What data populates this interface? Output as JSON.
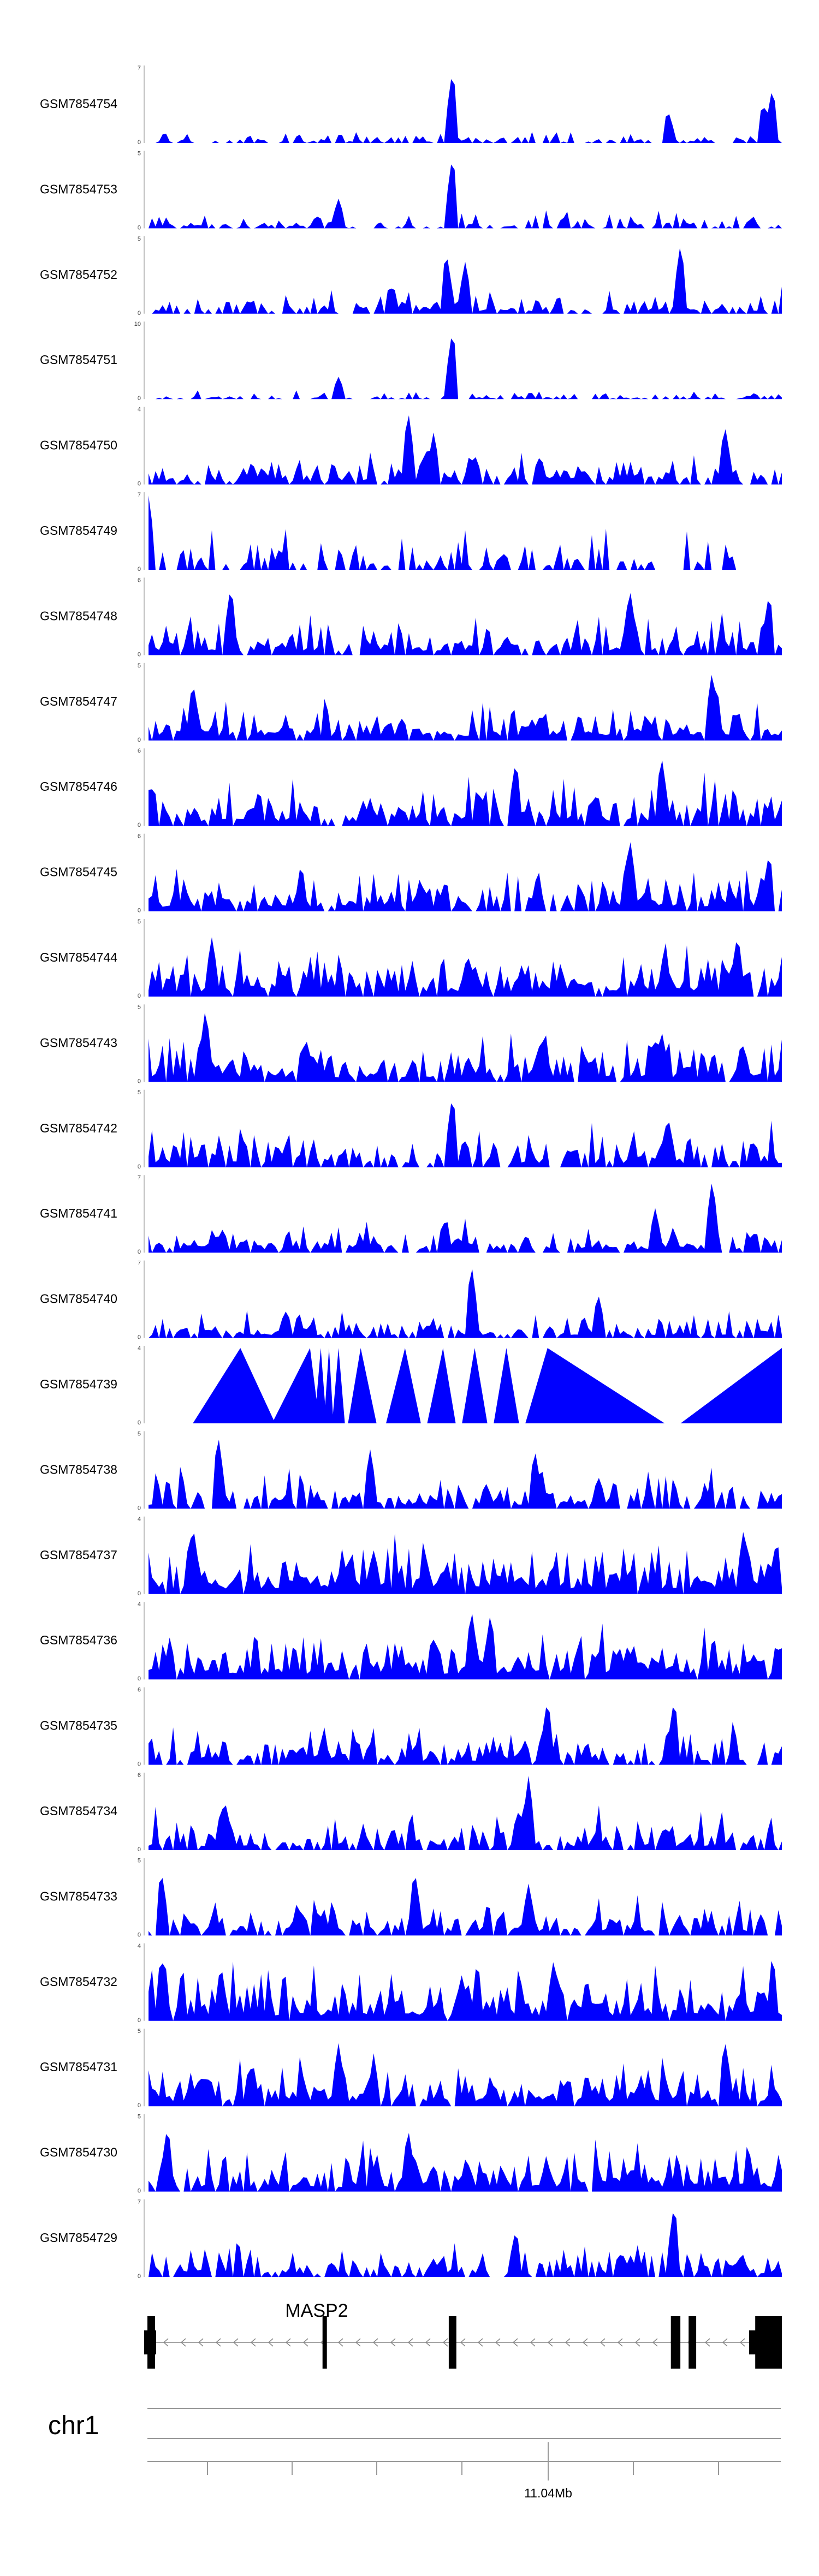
{
  "chart_data": {
    "type": "area",
    "color": "#0000ff",
    "n_bins": 180,
    "tracks": [
      {
        "name": "GSM7854754",
        "ymax": "7",
        "ymin": "0",
        "seed": 11,
        "density": 0.55,
        "base": 0.1,
        "peaks": [
          [
            0.48,
            1.0
          ],
          [
            0.985,
            0.75
          ],
          [
            0.97,
            0.55
          ],
          [
            0.82,
            0.45
          ]
        ]
      },
      {
        "name": "GSM7854753",
        "ymax": "5",
        "ymin": "0",
        "seed": 23,
        "density": 0.6,
        "base": 0.15,
        "peaks": [
          [
            0.48,
            1.0
          ],
          [
            0.3,
            0.4
          ]
        ]
      },
      {
        "name": "GSM7854752",
        "ymax": "5",
        "ymin": "0",
        "seed": 37,
        "density": 0.7,
        "base": 0.22,
        "peaks": [
          [
            0.84,
            0.95
          ],
          [
            0.47,
            0.85
          ],
          [
            0.5,
            0.7
          ]
        ]
      },
      {
        "name": "GSM7854751",
        "ymax": "10",
        "ymin": "0",
        "seed": 41,
        "density": 0.5,
        "base": 0.08,
        "peaks": [
          [
            0.48,
            0.95
          ],
          [
            0.3,
            0.3
          ]
        ]
      },
      {
        "name": "GSM7854750",
        "ymax": "4",
        "ymin": "0",
        "seed": 53,
        "density": 0.8,
        "base": 0.3,
        "peaks": [
          [
            0.41,
            1.0
          ],
          [
            0.91,
            0.8
          ],
          [
            0.45,
            0.7
          ]
        ]
      },
      {
        "name": "GSM7854749",
        "ymax": "7",
        "ymin": "0",
        "seed": 61,
        "density": 0.45,
        "base": 0.35,
        "peaks": [
          [
            0.0,
            1.0
          ]
        ],
        "end": 0.94
      },
      {
        "name": "GSM7854748",
        "ymax": "6",
        "ymin": "0",
        "seed": 71,
        "density": 0.8,
        "base": 0.4,
        "peaks": [
          [
            0.13,
            0.95
          ],
          [
            0.76,
            0.9
          ],
          [
            0.98,
            0.85
          ]
        ]
      },
      {
        "name": "GSM7854747",
        "ymax": "5",
        "ymin": "0",
        "seed": 83,
        "density": 0.85,
        "base": 0.4,
        "peaks": [
          [
            0.89,
            0.95
          ],
          [
            0.07,
            0.8
          ]
        ]
      },
      {
        "name": "GSM7854746",
        "ymax": "6",
        "ymin": "0",
        "seed": 97,
        "density": 0.85,
        "base": 0.42,
        "peaks": [
          [
            0.81,
            0.95
          ],
          [
            0.58,
            0.9
          ]
        ]
      },
      {
        "name": "GSM7854745",
        "ymax": "6",
        "ymin": "0",
        "seed": 101,
        "density": 0.85,
        "base": 0.4,
        "peaks": [
          [
            0.76,
            1.0
          ],
          [
            0.98,
            0.8
          ]
        ]
      },
      {
        "name": "GSM7854744",
        "ymax": "5",
        "ymin": "0",
        "seed": 113,
        "density": 0.9,
        "base": 0.45,
        "peaks": [
          [
            0.1,
            0.8
          ],
          [
            0.93,
            0.85
          ]
        ]
      },
      {
        "name": "GSM7854743",
        "ymax": "5",
        "ymin": "0",
        "seed": 127,
        "density": 0.85,
        "base": 0.4,
        "peaks": [
          [
            0.09,
            1.0
          ],
          [
            0.81,
            0.7
          ]
        ]
      },
      {
        "name": "GSM7854742",
        "ymax": "5",
        "ymin": "0",
        "seed": 131,
        "density": 0.8,
        "base": 0.38,
        "peaks": [
          [
            0.48,
            1.0
          ],
          [
            0.82,
            0.7
          ]
        ]
      },
      {
        "name": "GSM7854741",
        "ymax": "7",
        "ymin": "0",
        "seed": 139,
        "density": 0.8,
        "base": 0.28,
        "peaks": [
          [
            0.89,
            1.0
          ],
          [
            0.8,
            0.6
          ]
        ]
      },
      {
        "name": "GSM7854740",
        "ymax": "7",
        "ymin": "0",
        "seed": 149,
        "density": 0.75,
        "base": 0.25,
        "peaks": [
          [
            0.51,
            1.0
          ],
          [
            0.71,
            0.6
          ]
        ]
      },
      {
        "name": "GSM7854739",
        "ymax": "4",
        "ymin": "0",
        "triangles": [
          [
            0.07,
            0.145,
            0.2
          ],
          [
            0.195,
            0.255,
            0.27
          ],
          [
            0.262,
            0.272,
            0.281
          ],
          [
            0.277,
            0.285,
            0.292
          ],
          [
            0.29,
            0.3,
            0.31
          ],
          [
            0.315,
            0.335,
            0.36
          ],
          [
            0.375,
            0.405,
            0.43
          ],
          [
            0.44,
            0.465,
            0.485
          ],
          [
            0.495,
            0.515,
            0.535
          ],
          [
            0.545,
            0.565,
            0.585
          ],
          [
            0.595,
            0.63,
            0.815
          ],
          [
            0.84,
            1.0,
            1.0
          ]
        ]
      },
      {
        "name": "GSM7854738",
        "ymax": "5",
        "ymin": "0",
        "seed": 163,
        "density": 0.8,
        "base": 0.35,
        "peaks": [
          [
            0.11,
            1.0
          ],
          [
            0.35,
            0.8
          ],
          [
            0.61,
            0.8
          ]
        ]
      },
      {
        "name": "GSM7854737",
        "ymax": "4",
        "ymin": "0",
        "seed": 173,
        "density": 0.95,
        "base": 0.5,
        "peaks": [
          [
            0.07,
            0.95
          ],
          [
            0.94,
            0.9
          ]
        ]
      },
      {
        "name": "GSM7854736",
        "ymax": "4",
        "ymin": "0",
        "seed": 181,
        "density": 0.95,
        "base": 0.48,
        "peaks": [
          [
            0.51,
            0.95
          ],
          [
            0.54,
            0.9
          ]
        ]
      },
      {
        "name": "GSM7854735",
        "ymax": "6",
        "ymin": "0",
        "seed": 191,
        "density": 0.8,
        "base": 0.35,
        "peaks": [
          [
            0.63,
            0.9
          ],
          [
            0.83,
            0.9
          ]
        ]
      },
      {
        "name": "GSM7854734",
        "ymax": "6",
        "ymin": "0",
        "seed": 197,
        "density": 0.8,
        "base": 0.35,
        "peaks": [
          [
            0.6,
            1.0
          ],
          [
            0.12,
            0.7
          ]
        ]
      },
      {
        "name": "GSM7854733",
        "ymax": "5",
        "ymin": "0",
        "seed": 211,
        "density": 0.7,
        "base": 0.35,
        "peaks": [
          [
            0.02,
            0.9
          ],
          [
            0.42,
            0.9
          ],
          [
            0.6,
            0.7
          ]
        ]
      },
      {
        "name": "GSM7854732",
        "ymax": "4",
        "ymin": "0",
        "seed": 223,
        "density": 0.95,
        "base": 0.48,
        "peaks": [
          [
            0.02,
            0.9
          ],
          [
            0.64,
            0.85
          ]
        ]
      },
      {
        "name": "GSM7854731",
        "ymax": "5",
        "ymin": "0",
        "seed": 229,
        "density": 0.9,
        "base": 0.45,
        "peaks": [
          [
            0.91,
            0.9
          ],
          [
            0.3,
            0.85
          ]
        ]
      },
      {
        "name": "GSM7854730",
        "ymax": "5",
        "ymin": "0",
        "seed": 233,
        "density": 0.9,
        "base": 0.42,
        "peaks": [
          [
            0.03,
            0.9
          ],
          [
            0.41,
            0.85
          ]
        ]
      },
      {
        "name": "GSM7854729",
        "ymax": "7",
        "ymin": "0",
        "seed": 241,
        "density": 0.75,
        "base": 0.3,
        "peaks": [
          [
            0.83,
            1.0
          ],
          [
            0.58,
            0.65
          ]
        ]
      }
    ],
    "gene_track": {
      "gene_name": "MASP2",
      "exons": [
        [
          0.0,
          0.012
        ],
        [
          0.276,
          0.282
        ],
        [
          0.475,
          0.487
        ],
        [
          0.825,
          0.84
        ],
        [
          0.853,
          0.865
        ],
        [
          0.958,
          1.0
        ]
      ]
    },
    "chromosome": "chr1",
    "axis_tick_label": "11.04Mb"
  }
}
